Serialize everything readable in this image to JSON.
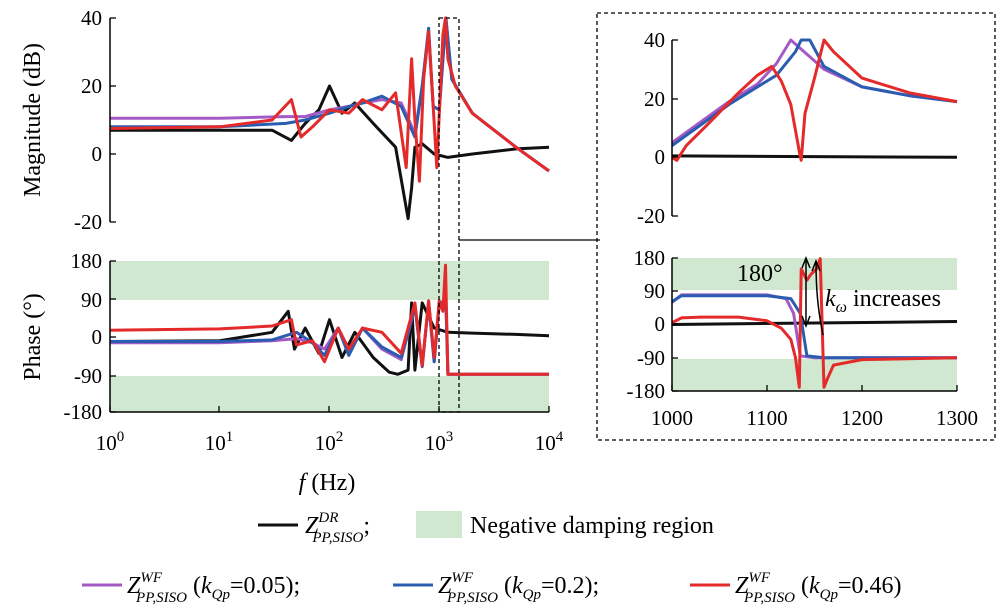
{
  "colors": {
    "black": "#111111",
    "purple": "#a45ac6",
    "blue": "#2a5db0",
    "red": "#e42a2a",
    "region": "#cfe8cf"
  },
  "chart_data": [
    {
      "type": "line",
      "panel": "main-magnitude",
      "ylabel": "Magnitude (dB)",
      "xscale": "log",
      "xlim": [
        1,
        10000
      ],
      "ylim": [
        -20,
        40
      ],
      "yticks": [
        "40",
        "20",
        "0",
        "-20"
      ],
      "series": [
        {
          "id": "dr",
          "x": [
            1,
            10,
            30,
            45,
            60,
            80,
            100,
            130,
            170,
            250,
            400,
            520,
            560,
            600,
            700,
            900,
            1200,
            2000,
            5000,
            10000
          ],
          "y": [
            7,
            7,
            7,
            4,
            9,
            13,
            20,
            12,
            15,
            9,
            2,
            -19,
            -10,
            2,
            3,
            0,
            -1,
            0,
            1.5,
            2
          ]
        },
        {
          "id": "wf005",
          "x": [
            1,
            10,
            40,
            60,
            100,
            150,
            200,
            300,
            450,
            600,
            700,
            800,
            880,
            1000,
            1150,
            1300,
            2000,
            5000,
            10000
          ],
          "y": [
            10.5,
            10.5,
            11,
            11,
            13,
            14,
            15,
            16,
            15,
            6,
            20,
            36,
            14,
            13,
            40,
            22,
            12,
            2,
            -5
          ]
        },
        {
          "id": "wf02",
          "x": [
            1,
            10,
            40,
            60,
            100,
            150,
            200,
            300,
            450,
            600,
            700,
            800,
            880,
            1000,
            1150,
            1300,
            2000,
            5000,
            10000
          ],
          "y": [
            8,
            8,
            9,
            10,
            12,
            14,
            15,
            17,
            14,
            5,
            20,
            37,
            14,
            13,
            40,
            22,
            12,
            2,
            -5
          ]
        },
        {
          "id": "wf046",
          "x": [
            1,
            10,
            30,
            45,
            55,
            70,
            100,
            150,
            200,
            300,
            400,
            500,
            560,
            600,
            660,
            720,
            800,
            880,
            950,
            1080,
            1140,
            1200,
            1400,
            2000,
            5000,
            10000
          ],
          "y": [
            7.5,
            8,
            10,
            16,
            5,
            8,
            13,
            12,
            16,
            13,
            18,
            -4,
            28,
            10,
            -8,
            22,
            36,
            14,
            -4,
            35,
            40,
            28,
            20,
            12,
            2,
            -5
          ]
        }
      ]
    },
    {
      "type": "line",
      "panel": "main-phase",
      "ylabel": "Phase (°)",
      "xlabel": "f (Hz)",
      "xscale": "log",
      "xlim": [
        1,
        10000
      ],
      "ylim": [
        -180,
        180
      ],
      "yticks": [
        "180",
        "90",
        "0",
        "-90",
        "-180"
      ],
      "xticks": [
        "0",
        "1",
        "2",
        "3",
        "4"
      ],
      "shaded_ranges": [
        [
          90,
          180
        ],
        [
          -180,
          -90
        ]
      ],
      "series": [
        {
          "id": "dr",
          "x": [
            1,
            10,
            30,
            42,
            48,
            60,
            80,
            100,
            130,
            170,
            250,
            350,
            420,
            520,
            560,
            600,
            700,
            900,
            1200,
            2000,
            5000,
            10000
          ],
          "y": [
            -12,
            -10,
            10,
            60,
            -30,
            20,
            -40,
            40,
            -50,
            10,
            -50,
            -85,
            -90,
            -80,
            80,
            -80,
            80,
            20,
            10,
            8,
            5,
            2
          ]
        },
        {
          "id": "wf005",
          "x": [
            1,
            10,
            30,
            50,
            70,
            90,
            120,
            150,
            200,
            300,
            450,
            600,
            700,
            800,
            900,
            1000,
            1150,
            1200,
            1500,
            3000,
            10000
          ],
          "y": [
            -15,
            -15,
            -10,
            -5,
            -15,
            -30,
            20,
            -40,
            20,
            -30,
            -55,
            70,
            -70,
            80,
            -60,
            80,
            80,
            -90,
            -90,
            -90,
            -90
          ]
        },
        {
          "id": "wf02",
          "x": [
            1,
            10,
            30,
            50,
            70,
            90,
            120,
            150,
            200,
            300,
            450,
            600,
            700,
            800,
            900,
            1000,
            1150,
            1200,
            1500,
            3000,
            10000
          ],
          "y": [
            -12,
            -12,
            -8,
            10,
            -15,
            -45,
            20,
            -45,
            20,
            -25,
            -50,
            72,
            -72,
            82,
            -60,
            82,
            82,
            -90,
            -90,
            -90,
            -90
          ]
        },
        {
          "id": "wf046",
          "x": [
            1,
            10,
            30,
            45,
            50,
            70,
            90,
            120,
            150,
            200,
            300,
            450,
            600,
            700,
            800,
            900,
            1000,
            1080,
            1140,
            1200,
            1500,
            3000,
            10000
          ],
          "y": [
            15,
            18,
            25,
            40,
            -20,
            -10,
            -60,
            20,
            -30,
            20,
            10,
            -40,
            80,
            -70,
            85,
            -50,
            85,
            60,
            170,
            -90,
            -90,
            -90,
            -90
          ]
        }
      ]
    },
    {
      "type": "line",
      "panel": "zoom-magnitude",
      "xlim": [
        1000,
        1300
      ],
      "ylim": [
        -20,
        40
      ],
      "yticks": [
        "40",
        "20",
        "0",
        "-20"
      ],
      "series": [
        {
          "id": "dr",
          "x": [
            1000,
            1300
          ],
          "y": [
            0.5,
            0
          ]
        },
        {
          "id": "wf005",
          "x": [
            1000,
            1030,
            1060,
            1090,
            1110,
            1125,
            1160,
            1200,
            1250,
            1300
          ],
          "y": [
            5,
            12,
            19,
            25,
            32,
            40,
            30,
            24,
            21,
            19
          ]
        },
        {
          "id": "wf02",
          "x": [
            1000,
            1030,
            1060,
            1090,
            1110,
            1130,
            1136,
            1145,
            1160,
            1200,
            1250,
            1300
          ],
          "y": [
            4,
            11,
            18,
            24,
            28,
            36,
            40,
            40,
            31,
            24,
            21,
            19
          ]
        },
        {
          "id": "wf046",
          "x": [
            1000,
            1005,
            1015,
            1040,
            1070,
            1090,
            1105,
            1115,
            1125,
            1134,
            1136,
            1140,
            1150,
            1160,
            1170,
            1200,
            1250,
            1300
          ],
          "y": [
            0,
            -1,
            4,
            12,
            22,
            28,
            31,
            26,
            18,
            2,
            -1,
            15,
            27,
            40,
            36,
            27,
            22,
            19
          ]
        }
      ]
    },
    {
      "type": "line",
      "panel": "zoom-phase",
      "xlim": [
        1000,
        1300
      ],
      "ylim": [
        -180,
        180
      ],
      "yticks": [
        "180",
        "90",
        "0",
        "-90",
        "-180"
      ],
      "xticks": [
        "1000",
        "1100",
        "1200",
        "1300"
      ],
      "shaded_ranges": [
        [
          90,
          180
        ],
        [
          -180,
          -90
        ]
      ],
      "series": [
        {
          "id": "dr",
          "x": [
            1000,
            1300
          ],
          "y": [
            0,
            8
          ]
        },
        {
          "id": "wf005",
          "x": [
            1000,
            1010,
            1050,
            1100,
            1120,
            1128,
            1135,
            1150,
            1300
          ],
          "y": [
            60,
            80,
            80,
            80,
            70,
            30,
            -85,
            -90,
            -90
          ]
        },
        {
          "id": "wf02",
          "x": [
            1000,
            1010,
            1050,
            1100,
            1125,
            1135,
            1142,
            1160,
            1300
          ],
          "y": [
            62,
            78,
            78,
            78,
            70,
            30,
            -85,
            -90,
            -90
          ]
        },
        {
          "id": "wf046",
          "x": [
            1000,
            1010,
            1030,
            1070,
            1100,
            1115,
            1125,
            1130,
            1134,
            1136,
            1142,
            1146,
            1152,
            1156,
            1160,
            1163,
            1170,
            1200,
            1300
          ],
          "y": [
            5,
            18,
            20,
            20,
            10,
            -10,
            -40,
            -90,
            -170,
            150,
            120,
            135,
            150,
            178,
            -170,
            -150,
            -110,
            -95,
            -90
          ]
        }
      ]
    }
  ],
  "annotations": {
    "angle": "180°",
    "k_symbol": "k",
    "k_sub": "ω",
    "increases": "increases"
  },
  "legend": {
    "dr": {
      "sym": "Z",
      "sup": "DR",
      "sub": "PP,SISO",
      "tail": ";"
    },
    "region": "Negative damping region",
    "wf005": {
      "sym": "Z",
      "sup": "WF",
      "sub": "PP,SISO",
      "open": " (",
      "k": "k",
      "ksub": "Qp",
      "val": "=0.05);"
    },
    "wf02": {
      "sym": "Z",
      "sup": "WF",
      "sub": "PP,SISO",
      "open": " (",
      "k": "k",
      "ksub": "Qp",
      "val": "=0.2);"
    },
    "wf046": {
      "sym": "Z",
      "sup": "WF",
      "sub": "PP,SISO",
      "open": " (",
      "k": "k",
      "ksub": "Qp",
      "val": "=0.46)"
    }
  },
  "xlabel_parts": {
    "f": "f",
    "unit": " (Hz)"
  },
  "x_tick_base": "10"
}
